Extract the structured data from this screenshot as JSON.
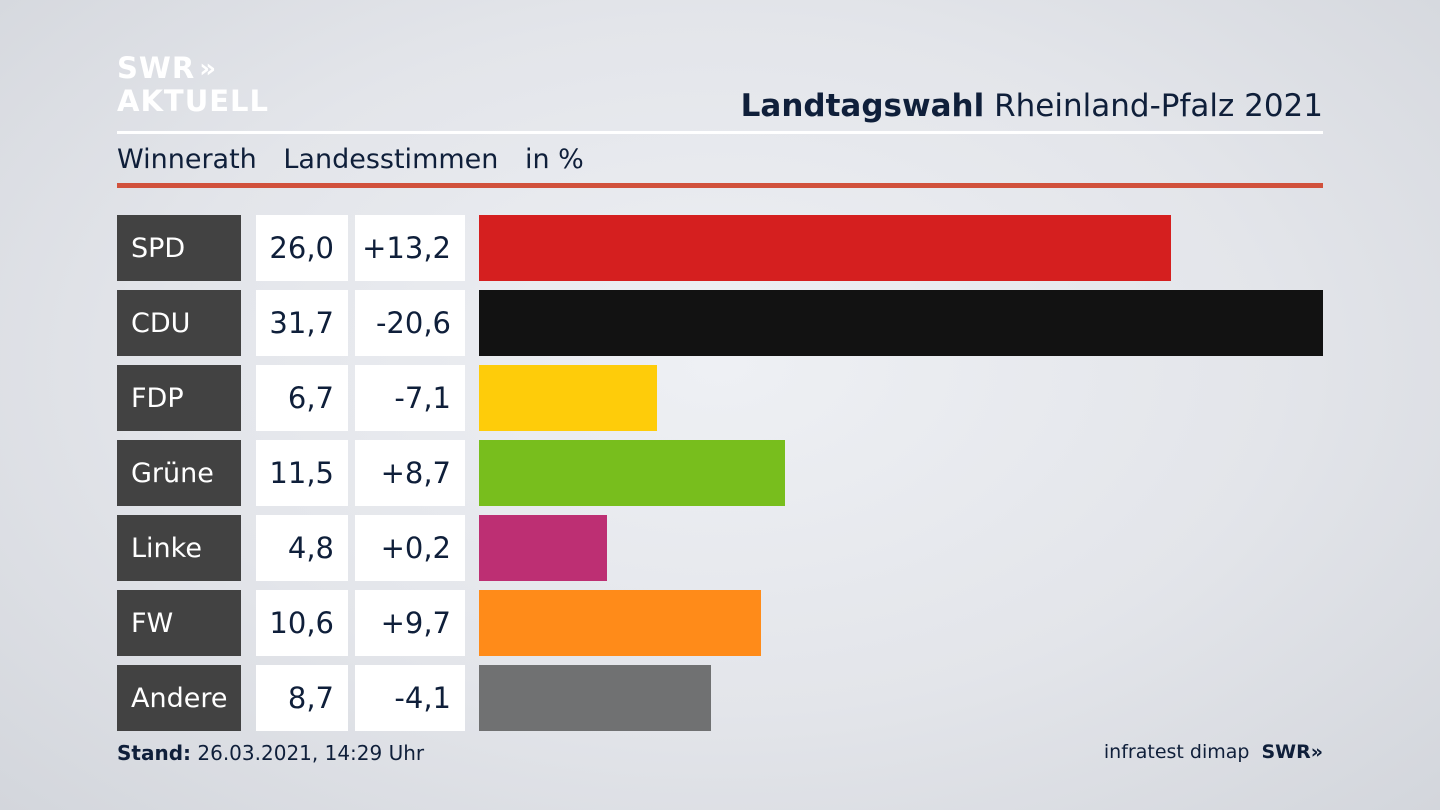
{
  "logo": {
    "line1": "SWR",
    "chevrons": "»",
    "line2": "AKTUELL"
  },
  "headline": {
    "bold": "Landtagswahl",
    "rest": "Rheinland-Pfalz 2021"
  },
  "subtitle": {
    "place": "Winnerath",
    "kind": "Landesstimmen",
    "unit": "in %"
  },
  "chart_data": {
    "type": "bar",
    "orientation": "horizontal",
    "categories": [
      "SPD",
      "CDU",
      "FDP",
      "Grüne",
      "Linke",
      "FW",
      "Andere"
    ],
    "values": [
      26.0,
      31.7,
      6.7,
      11.5,
      4.8,
      10.6,
      8.7
    ],
    "value_labels": [
      "26,0",
      "31,7",
      "6,7",
      "11,5",
      "4,8",
      "10,6",
      "8,7"
    ],
    "change_labels": [
      "+13,2",
      "-20,6",
      "-7,1",
      "+8,7",
      "+0,2",
      "+9,7",
      "-4,1"
    ],
    "changes": [
      13.2,
      -20.6,
      -7.1,
      8.7,
      0.2,
      9.7,
      -4.1
    ],
    "colors": [
      "#d51f1f",
      "#121212",
      "#fecc0a",
      "#78be1d",
      "#bd2f73",
      "#ff8b19",
      "#707172"
    ],
    "xlim": [
      0,
      31.7
    ]
  },
  "footer": {
    "stand_label": "Stand:",
    "stand_value": "26.03.2021, 14:29 Uhr",
    "source": "infratest dimap",
    "brand": "SWR»"
  }
}
